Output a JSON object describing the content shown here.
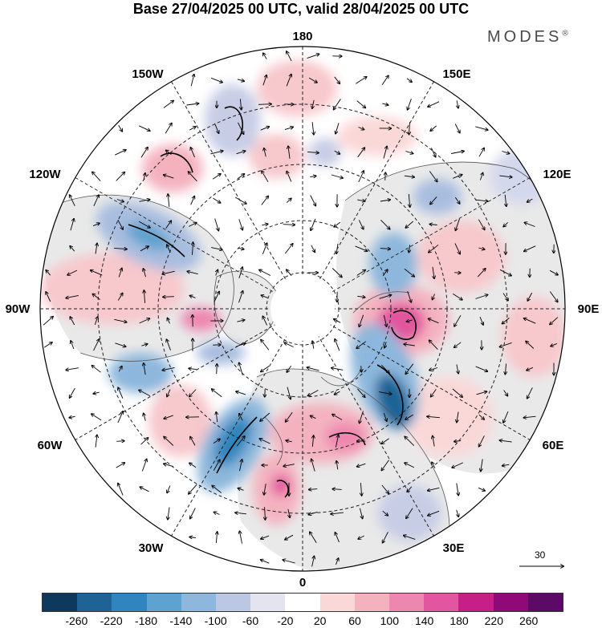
{
  "title": "Base 27/04/2025 00 UTC, valid 28/04/2025 00 UTC",
  "brand": "MODES",
  "brand_mark": "®",
  "longitude_labels": {
    "top": "180",
    "bottom": "0",
    "left": "90W",
    "right": "90E",
    "upper_left_1": "150W",
    "upper_left_2": "120W",
    "upper_right_1": "150E",
    "upper_right_2": "120E",
    "lower_left_1": "60W",
    "lower_left_2": "30W",
    "lower_right_1": "60E",
    "lower_right_2": "30E"
  },
  "reference_vector_label": "30",
  "colorbar": {
    "colors": [
      "#0d3a5c",
      "#1f6396",
      "#2f85bd",
      "#5ea3cf",
      "#8db7dc",
      "#bcc7e3",
      "#e4e4f0",
      "#ffffff",
      "#fbd8d8",
      "#f4b2bf",
      "#ee87b0",
      "#e2559f",
      "#c81e88",
      "#8f0a78",
      "#5b0a66"
    ],
    "ticks": [
      "-260",
      "-220",
      "-180",
      "-140",
      "-100",
      "-60",
      "-20",
      "20",
      "60",
      "100",
      "140",
      "180",
      "220",
      "260"
    ]
  },
  "colors": {
    "ocean_land_gray": "#e9e9e9",
    "coast": "#555555",
    "grid": "#222222"
  }
}
